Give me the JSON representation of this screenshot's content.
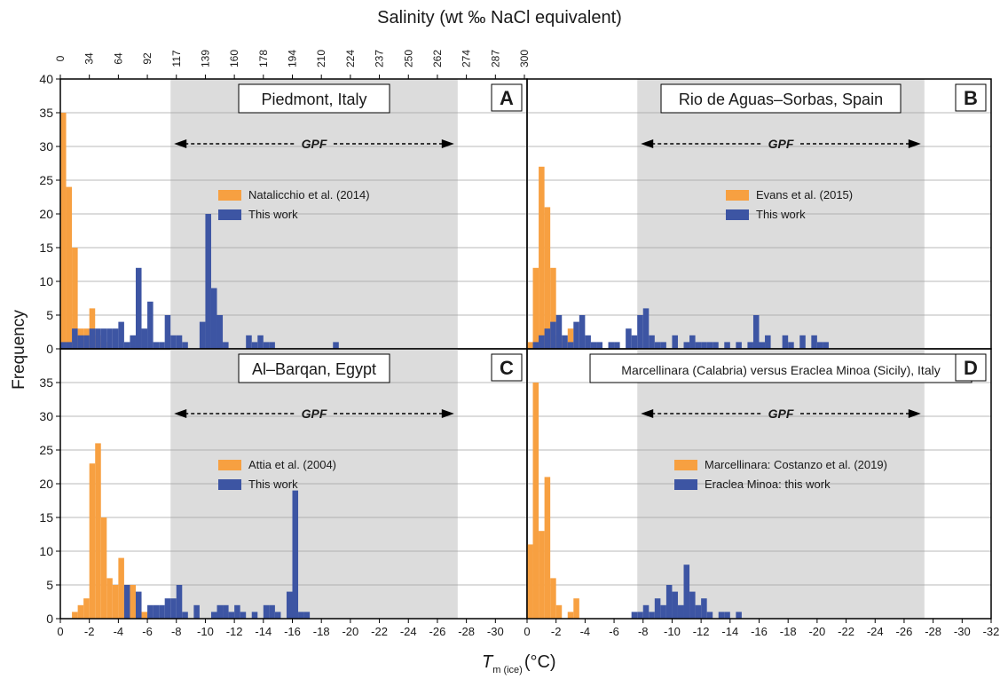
{
  "figure": {
    "top_axis_title": "Salinity (wt ‰ NaCl equivalent)",
    "y_axis_title": "Frequency",
    "x_axis_title_main": "T",
    "x_axis_title_sub": "m (ice)",
    "x_axis_title_unit": "(°C)",
    "top_ticks": [
      "0",
      "34",
      "64",
      "92",
      "117",
      "139",
      "160",
      "178",
      "194",
      "210",
      "224",
      "237",
      "250",
      "262",
      "274",
      "287",
      "300"
    ],
    "top_tick_positions_tm": [
      0,
      -2,
      -4,
      -6,
      -8,
      -10,
      -12,
      -14,
      -16,
      -18,
      -20,
      -22,
      -24,
      -26,
      -28,
      -30,
      -32
    ],
    "colors": {
      "orange": "#F7A041",
      "blue": "#3D55A3",
      "gpf_band": "#DCDCDC",
      "grid": "#A0A0A0"
    }
  },
  "chart_data": [
    {
      "type": "bar",
      "panel_letter": "A",
      "title": "Piedmont, Italy",
      "gpf_label": "GPF",
      "gpf_range": [
        -7.6,
        -27.4
      ],
      "xlim": [
        0,
        -32
      ],
      "ylim": [
        0,
        40
      ],
      "yticks": [
        0,
        5,
        10,
        15,
        20,
        25,
        30,
        35,
        40
      ],
      "xticks": [
        0,
        -2,
        -4,
        -6,
        -8,
        -10,
        -12,
        -14,
        -16,
        -18,
        -20,
        -22,
        -24,
        -26,
        -28,
        -30
      ],
      "xtick_labels": [
        "0",
        "-2",
        "-4",
        "-6",
        "-8",
        "-10",
        "-12",
        "-14",
        "-16",
        "-18",
        "-20",
        "-22",
        "-24",
        "-26",
        "-28",
        "-30"
      ],
      "bin_width": 0.4,
      "series": [
        {
          "name": "Natalicchio et al. (2014)",
          "color": "#F7A041",
          "bins": [
            [
              0,
              35
            ],
            [
              -0.4,
              24
            ],
            [
              -0.8,
              15
            ],
            [
              -1.2,
              3
            ],
            [
              -1.6,
              3
            ],
            [
              -2.0,
              6
            ],
            [
              -2.4,
              2
            ],
            [
              -2.8,
              1
            ]
          ]
        },
        {
          "name": "This work",
          "color": "#3D55A3",
          "bins": [
            [
              0,
              1
            ],
            [
              -0.4,
              1
            ],
            [
              -0.8,
              3
            ],
            [
              -1.2,
              2
            ],
            [
              -1.6,
              2
            ],
            [
              -2.0,
              3
            ],
            [
              -2.4,
              3
            ],
            [
              -2.8,
              3
            ],
            [
              -3.2,
              3
            ],
            [
              -3.6,
              3
            ],
            [
              -4.0,
              4
            ],
            [
              -4.4,
              1
            ],
            [
              -4.8,
              2
            ],
            [
              -5.2,
              12
            ],
            [
              -5.6,
              3
            ],
            [
              -6.0,
              7
            ],
            [
              -6.4,
              1
            ],
            [
              -6.8,
              1
            ],
            [
              -7.2,
              5
            ],
            [
              -7.6,
              2
            ],
            [
              -8.0,
              2
            ],
            [
              -8.4,
              1
            ],
            [
              -9.6,
              4
            ],
            [
              -10.0,
              20
            ],
            [
              -10.4,
              9
            ],
            [
              -10.8,
              5
            ],
            [
              -11.2,
              1
            ],
            [
              -12.8,
              2
            ],
            [
              -13.2,
              1
            ],
            [
              -13.6,
              2
            ],
            [
              -14.0,
              1
            ],
            [
              -14.4,
              1
            ],
            [
              -18.8,
              1
            ]
          ]
        }
      ]
    },
    {
      "type": "bar",
      "panel_letter": "B",
      "title": "Rio de Aguas–Sorbas, Spain",
      "gpf_label": "GPF",
      "gpf_range": [
        -7.6,
        -27.4
      ],
      "xlim": [
        0,
        -32
      ],
      "ylim": [
        0,
        40
      ],
      "yticks": [
        0,
        5,
        10,
        15,
        20,
        25,
        30,
        35,
        40
      ],
      "xticks": [
        0,
        -2,
        -4,
        -6,
        -8,
        -10,
        -12,
        -14,
        -16,
        -18,
        -20,
        -22,
        -24,
        -26,
        -28,
        -30,
        -32
      ],
      "xtick_labels": [
        "0",
        "-2",
        "-4",
        "-6",
        "-8",
        "-10",
        "-12",
        "-14",
        "-16",
        "-18",
        "-20",
        "-22",
        "-24",
        "-26",
        "-28",
        "-30",
        "-32"
      ],
      "bin_width": 0.4,
      "series": [
        {
          "name": "Evans et al. (2015)",
          "color": "#F7A041",
          "bins": [
            [
              0,
              1
            ],
            [
              -0.4,
              12
            ],
            [
              -0.8,
              27
            ],
            [
              -1.2,
              21
            ],
            [
              -1.6,
              12
            ],
            [
              -2.0,
              2
            ],
            [
              -2.4,
              1
            ],
            [
              -2.8,
              3
            ]
          ]
        },
        {
          "name": "This work",
          "color": "#3D55A3",
          "bins": [
            [
              -0.4,
              1
            ],
            [
              -0.8,
              2
            ],
            [
              -1.2,
              3
            ],
            [
              -1.6,
              4
            ],
            [
              -2.0,
              5
            ],
            [
              -2.4,
              2
            ],
            [
              -2.8,
              1
            ],
            [
              -3.2,
              4
            ],
            [
              -3.6,
              5
            ],
            [
              -4.0,
              2
            ],
            [
              -4.4,
              1
            ],
            [
              -4.8,
              1
            ],
            [
              -5.6,
              1
            ],
            [
              -6.0,
              1
            ],
            [
              -6.8,
              3
            ],
            [
              -7.2,
              2
            ],
            [
              -7.6,
              5
            ],
            [
              -8.0,
              6
            ],
            [
              -8.4,
              2
            ],
            [
              -8.8,
              1
            ],
            [
              -9.2,
              1
            ],
            [
              -10.0,
              2
            ],
            [
              -10.8,
              1
            ],
            [
              -11.2,
              2
            ],
            [
              -11.6,
              1
            ],
            [
              -12.0,
              1
            ],
            [
              -12.4,
              1
            ],
            [
              -12.8,
              1
            ],
            [
              -13.6,
              1
            ],
            [
              -14.4,
              1
            ],
            [
              -15.2,
              1
            ],
            [
              -15.6,
              5
            ],
            [
              -16.0,
              1
            ],
            [
              -16.4,
              2
            ],
            [
              -17.6,
              2
            ],
            [
              -18.0,
              1
            ],
            [
              -18.8,
              2
            ],
            [
              -19.6,
              2
            ],
            [
              -20.0,
              1
            ],
            [
              -20.4,
              1
            ]
          ]
        }
      ]
    },
    {
      "type": "bar",
      "panel_letter": "C",
      "title": "Al–Barqan, Egypt",
      "gpf_label": "GPF",
      "gpf_range": [
        -7.6,
        -27.4
      ],
      "xlim": [
        0,
        -32
      ],
      "ylim": [
        0,
        40
      ],
      "yticks": [
        0,
        5,
        10,
        15,
        20,
        25,
        30,
        35
      ],
      "xticks": [
        0,
        -2,
        -4,
        -6,
        -8,
        -10,
        -12,
        -14,
        -16,
        -18,
        -20,
        -22,
        -24,
        -26,
        -28,
        -30
      ],
      "xtick_labels": [
        "0",
        "-2",
        "-4",
        "-6",
        "-8",
        "-10",
        "-12",
        "-14",
        "-16",
        "-18",
        "-20",
        "-22",
        "-24",
        "-26",
        "-28",
        "-30"
      ],
      "bin_width": 0.4,
      "series": [
        {
          "name": "Attia et al. (2004)",
          "color": "#F7A041",
          "bins": [
            [
              -0.8,
              1
            ],
            [
              -1.2,
              2
            ],
            [
              -1.6,
              3
            ],
            [
              -2.0,
              23
            ],
            [
              -2.4,
              26
            ],
            [
              -2.8,
              15
            ],
            [
              -3.2,
              6
            ],
            [
              -3.6,
              5
            ],
            [
              -4.0,
              9
            ],
            [
              -4.4,
              4
            ],
            [
              -4.8,
              5
            ],
            [
              -5.2,
              3
            ],
            [
              -5.6,
              1
            ]
          ]
        },
        {
          "name": "This work",
          "color": "#3D55A3",
          "bins": [
            [
              -4.4,
              5
            ],
            [
              -5.2,
              4
            ],
            [
              -6.0,
              2
            ],
            [
              -6.4,
              2
            ],
            [
              -6.8,
              2
            ],
            [
              -7.2,
              3
            ],
            [
              -7.6,
              3
            ],
            [
              -8.0,
              5
            ],
            [
              -8.4,
              1
            ],
            [
              -9.2,
              2
            ],
            [
              -10.4,
              1
            ],
            [
              -10.8,
              2
            ],
            [
              -11.2,
              2
            ],
            [
              -11.6,
              1
            ],
            [
              -12.0,
              2
            ],
            [
              -12.4,
              1
            ],
            [
              -13.2,
              1
            ],
            [
              -14.0,
              2
            ],
            [
              -14.4,
              2
            ],
            [
              -14.8,
              1
            ],
            [
              -15.6,
              4
            ],
            [
              -16.0,
              19
            ],
            [
              -16.4,
              1
            ],
            [
              -16.8,
              1
            ]
          ]
        }
      ]
    },
    {
      "type": "bar",
      "panel_letter": "D",
      "title": "Marcellinara (Calabria) versus Eraclea Minoa (Sicily), Italy",
      "gpf_label": "GPF",
      "gpf_range": [
        -7.6,
        -27.4
      ],
      "xlim": [
        0,
        -32
      ],
      "ylim": [
        0,
        40
      ],
      "yticks": [
        0,
        5,
        10,
        15,
        20,
        25,
        30,
        35
      ],
      "xticks": [
        0,
        -2,
        -4,
        -6,
        -8,
        -10,
        -12,
        -14,
        -16,
        -18,
        -20,
        -22,
        -24,
        -26,
        -28,
        -30,
        -32
      ],
      "xtick_labels": [
        "0",
        "-2",
        "-4",
        "-6",
        "-8",
        "-10",
        "-12",
        "-14",
        "-16",
        "-18",
        "-20",
        "-22",
        "-24",
        "-26",
        "-28",
        "-30",
        "-32"
      ],
      "bin_width": 0.4,
      "series": [
        {
          "name": "Marcellinara: Costanzo et al. (2019)",
          "color": "#F7A041",
          "bins": [
            [
              0,
              11
            ],
            [
              -0.4,
              35
            ],
            [
              -0.8,
              13
            ],
            [
              -1.2,
              21
            ],
            [
              -1.6,
              6
            ],
            [
              -2.0,
              2
            ],
            [
              -2.8,
              1
            ],
            [
              -3.2,
              3
            ]
          ]
        },
        {
          "name": "Eraclea Minoa: this work",
          "color": "#3D55A3",
          "bins": [
            [
              -7.2,
              1
            ],
            [
              -7.6,
              1
            ],
            [
              -8.0,
              2
            ],
            [
              -8.4,
              1
            ],
            [
              -8.8,
              3
            ],
            [
              -9.2,
              2
            ],
            [
              -9.6,
              5
            ],
            [
              -10.0,
              4
            ],
            [
              -10.4,
              2
            ],
            [
              -10.8,
              8
            ],
            [
              -11.2,
              4
            ],
            [
              -11.6,
              2
            ],
            [
              -12.0,
              3
            ],
            [
              -12.4,
              1
            ],
            [
              -13.2,
              1
            ],
            [
              -13.6,
              1
            ],
            [
              -14.4,
              1
            ]
          ]
        }
      ]
    }
  ]
}
